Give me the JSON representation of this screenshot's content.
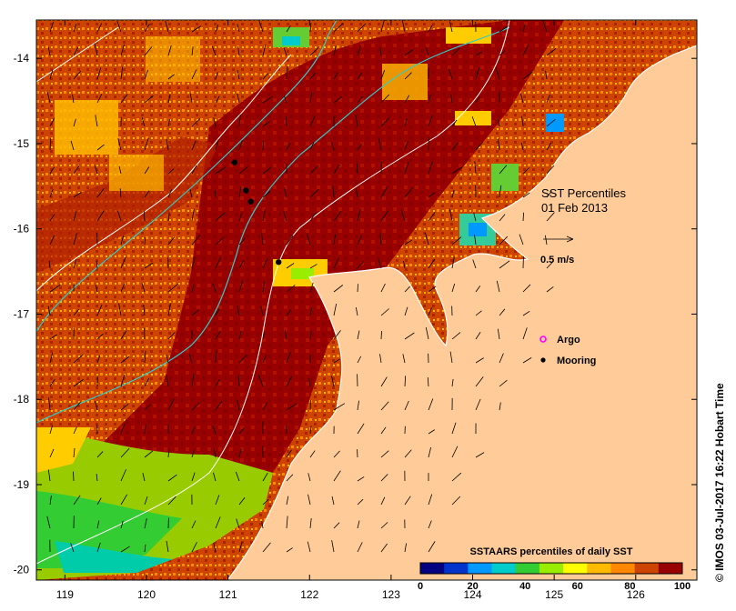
{
  "map": {
    "title": "SST Percentiles",
    "date": "01 Feb 2013",
    "vector_scale_label": "0.5 m/s",
    "x_ticks": [
      "119",
      "120",
      "121",
      "122",
      "123",
      "124",
      "125",
      "126"
    ],
    "y_ticks": [
      "-14",
      "-15",
      "-16",
      "-17",
      "-18",
      "-19",
      "-20"
    ],
    "legend": {
      "argo_label": "Argo",
      "mooring_label": "Mooring"
    },
    "moorings": [
      {
        "lon": 121.08,
        "lat": -15.22
      },
      {
        "lon": 121.22,
        "lat": -15.55
      },
      {
        "lon": 121.28,
        "lat": -15.68
      },
      {
        "lon": 121.62,
        "lat": -16.39
      }
    ],
    "colorbar": {
      "title": "SSTAARS percentiles of daily SST",
      "tick_labels": [
        "0",
        "20",
        "40",
        "60",
        "80",
        "100"
      ],
      "colors": [
        "#000080",
        "#0033cc",
        "#0099ff",
        "#00cccc",
        "#33cc33",
        "#99ee00",
        "#ffff00",
        "#ffbb00",
        "#ff8800",
        "#cc4400",
        "#990000"
      ]
    },
    "land_color": "#ffcc99"
  },
  "credit": "© IMOS 03-Jul-2017 16:22 Hobart Time"
}
